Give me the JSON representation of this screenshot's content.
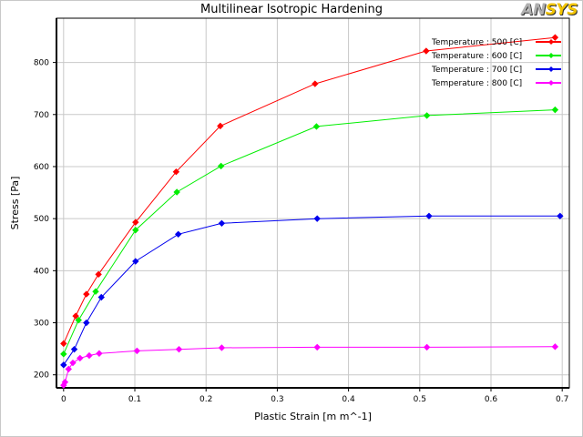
{
  "app": {
    "logo_text": "ANSYS",
    "logo_left": "AN",
    "logo_right": "SYS"
  },
  "chart_data": {
    "type": "line",
    "title": "Multilinear Isotropic Hardening",
    "xlabel": "Plastic Strain  [m m^-1]",
    "ylabel": "Stress  [Pa]",
    "xlim": [
      -0.01,
      0.71
    ],
    "ylim": [
      175,
      885
    ],
    "xticks": [
      0,
      0.1,
      0.2,
      0.3,
      0.4,
      0.5,
      0.6,
      0.7
    ],
    "xtick_labels": [
      "0",
      "0.1",
      "0.2",
      "0.3",
      "0.4",
      "0.5",
      "0.6",
      "0.7"
    ],
    "yticks": [
      200,
      300,
      400,
      500,
      600,
      700,
      800
    ],
    "ytick_labels": [
      "200",
      "300",
      "400",
      "500",
      "600",
      "700",
      "800"
    ],
    "grid": true,
    "legend_position": "top-right",
    "series": [
      {
        "name": "Temperature : 500 [C]",
        "color": "#ff0000",
        "x": [
          0,
          0.017,
          0.032,
          0.049,
          0.101,
          0.158,
          0.22,
          0.353,
          0.509,
          0.69
        ],
        "y": [
          260,
          313,
          355,
          393,
          493,
          590,
          678,
          759,
          822,
          848
        ]
      },
      {
        "name": "Temperature : 600 [C]",
        "color": "#00ee00",
        "x": [
          0,
          0.021,
          0.045,
          0.101,
          0.159,
          0.221,
          0.355,
          0.51,
          0.69
        ],
        "y": [
          240,
          305,
          360,
          478,
          551,
          601,
          677,
          698,
          709
        ]
      },
      {
        "name": "Temperature : 700 [C]",
        "color": "#0000ee",
        "x": [
          0,
          0.015,
          0.032,
          0.053,
          0.101,
          0.161,
          0.222,
          0.356,
          0.513,
          0.697
        ],
        "y": [
          219,
          249,
          300,
          349,
          418,
          470,
          491,
          500,
          505,
          505
        ]
      },
      {
        "name": "Temperature : 800 [C]",
        "color": "#ff00ff",
        "x": [
          0,
          0.002,
          0.007,
          0.013,
          0.023,
          0.036,
          0.05,
          0.103,
          0.162,
          0.222,
          0.356,
          0.51,
          0.69
        ],
        "y": [
          180,
          186,
          211,
          223,
          232,
          237,
          241,
          246,
          249,
          252,
          253,
          253,
          254
        ]
      }
    ]
  }
}
